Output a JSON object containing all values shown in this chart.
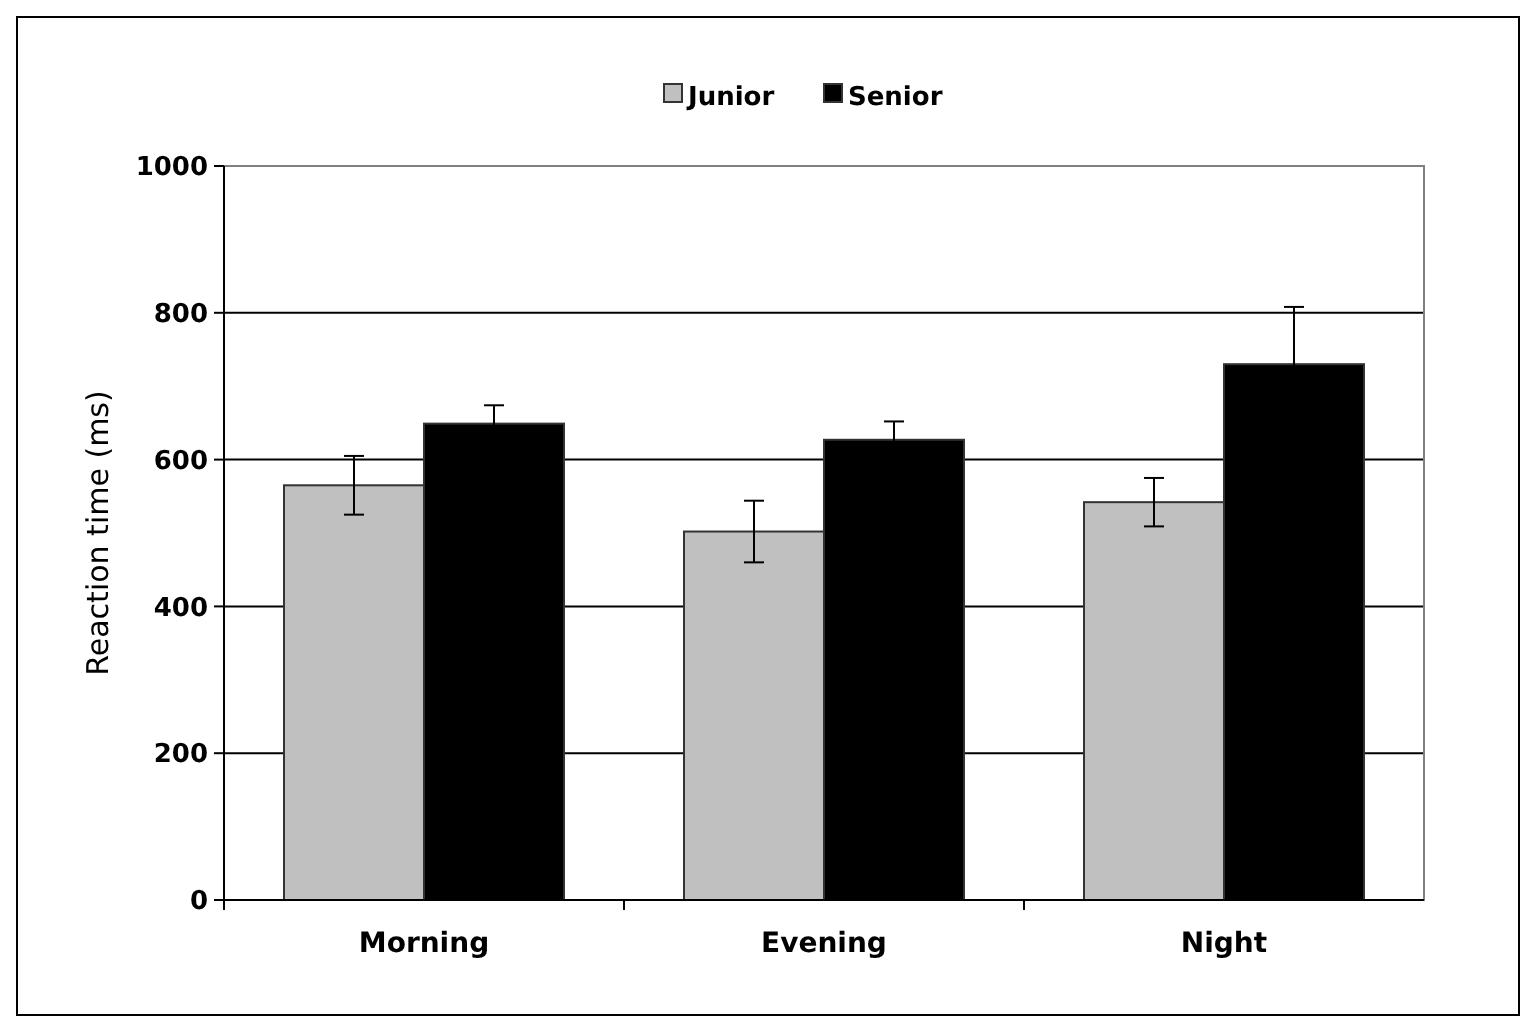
{
  "chart_data": {
    "type": "bar",
    "ylabel": "Reaction time (ms)",
    "categories": [
      "Morning",
      "Evening",
      "Night"
    ],
    "series": [
      {
        "name": "Junior",
        "color": "#c0c0c0",
        "values": [
          565,
          502,
          542
        ],
        "errors": [
          40,
          42,
          33
        ]
      },
      {
        "name": "Senior",
        "color": "#000000",
        "values": [
          649,
          627,
          730
        ],
        "errors": [
          25,
          25,
          78
        ]
      }
    ],
    "ylim": [
      0,
      1000
    ],
    "yticks": [
      0,
      200,
      400,
      600,
      800,
      1000
    ],
    "grid": "y",
    "legend": "top"
  }
}
